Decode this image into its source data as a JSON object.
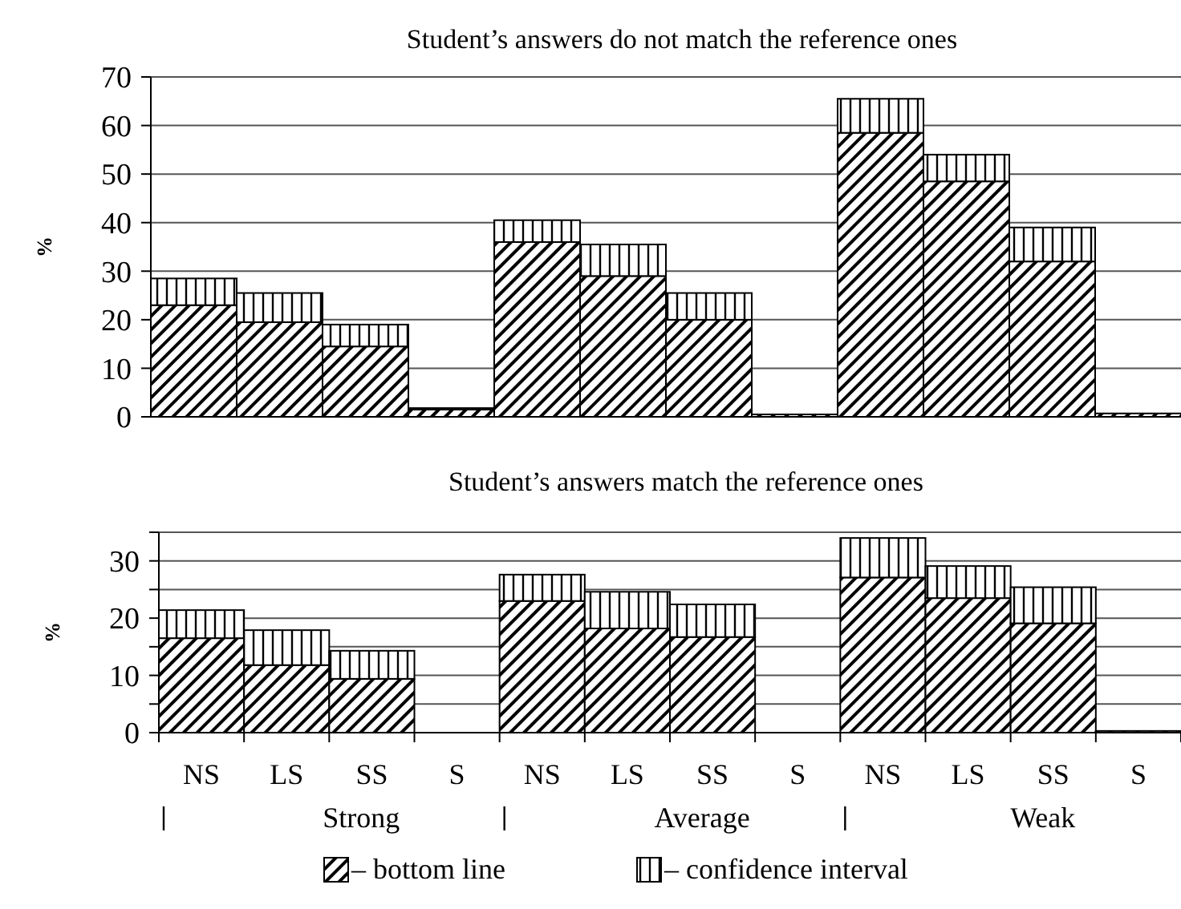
{
  "chart_data": [
    {
      "type": "bar",
      "title": "Student’s answers do not match the reference ones",
      "ylabel": "%",
      "categories": [
        null,
        null,
        null,
        null,
        null,
        null,
        null,
        null,
        null,
        null,
        null,
        null
      ],
      "stacked": true,
      "series": [
        {
          "color": "#000000",
          "values": [
            23,
            19.5,
            14.5,
            1.5,
            36,
            29,
            20,
            0.5,
            58.5,
            48.5,
            32,
            0.7
          ]
        },
        {
          "color": "#000000",
          "values": [
            5.5,
            6,
            4.5,
            0.3,
            4.5,
            6.5,
            5.5,
            0,
            7,
            5.5,
            7,
            0
          ]
        }
      ],
      "ylim": [
        0,
        70
      ],
      "yticks": [
        0,
        10,
        20,
        30,
        40,
        50,
        60,
        70
      ],
      "grid": "y",
      "tick_labels": "y",
      "legend": false
    },
    {
      "type": "bar",
      "title": "Student’s answers match the reference ones",
      "ylabel": "%",
      "categories": [
        "NS",
        "LS",
        "SS",
        "S",
        "NS",
        "LS",
        "SS",
        "S",
        "NS",
        "LS",
        "SS",
        "S"
      ],
      "stacked": true,
      "series": [
        {
          "name": "– bottom line",
          "color": "#000000",
          "values": [
            16.5,
            11.8,
            9.4,
            0,
            23,
            18.2,
            16.7,
            0,
            27.1,
            23.5,
            19.1,
            0.3
          ]
        },
        {
          "name": "– confidence interval",
          "color": "#000000",
          "values": [
            4.9,
            6.1,
            4.9,
            0,
            4.6,
            6.4,
            5.7,
            0,
            6.9,
            5.6,
            6.3,
            0
          ]
        }
      ],
      "ylim": [
        0,
        35
      ],
      "yticks": [
        0,
        {
          "value": 5,
          "label": null
        },
        10,
        {
          "value": 15,
          "label": null
        },
        20,
        {
          "value": 25,
          "label": null
        },
        30,
        {
          "value": 35,
          "label": null
        }
      ],
      "grid": "y",
      "legend": "bottom",
      "annotations": [
        "Strong",
        "Average",
        "Weak"
      ]
    }
  ]
}
